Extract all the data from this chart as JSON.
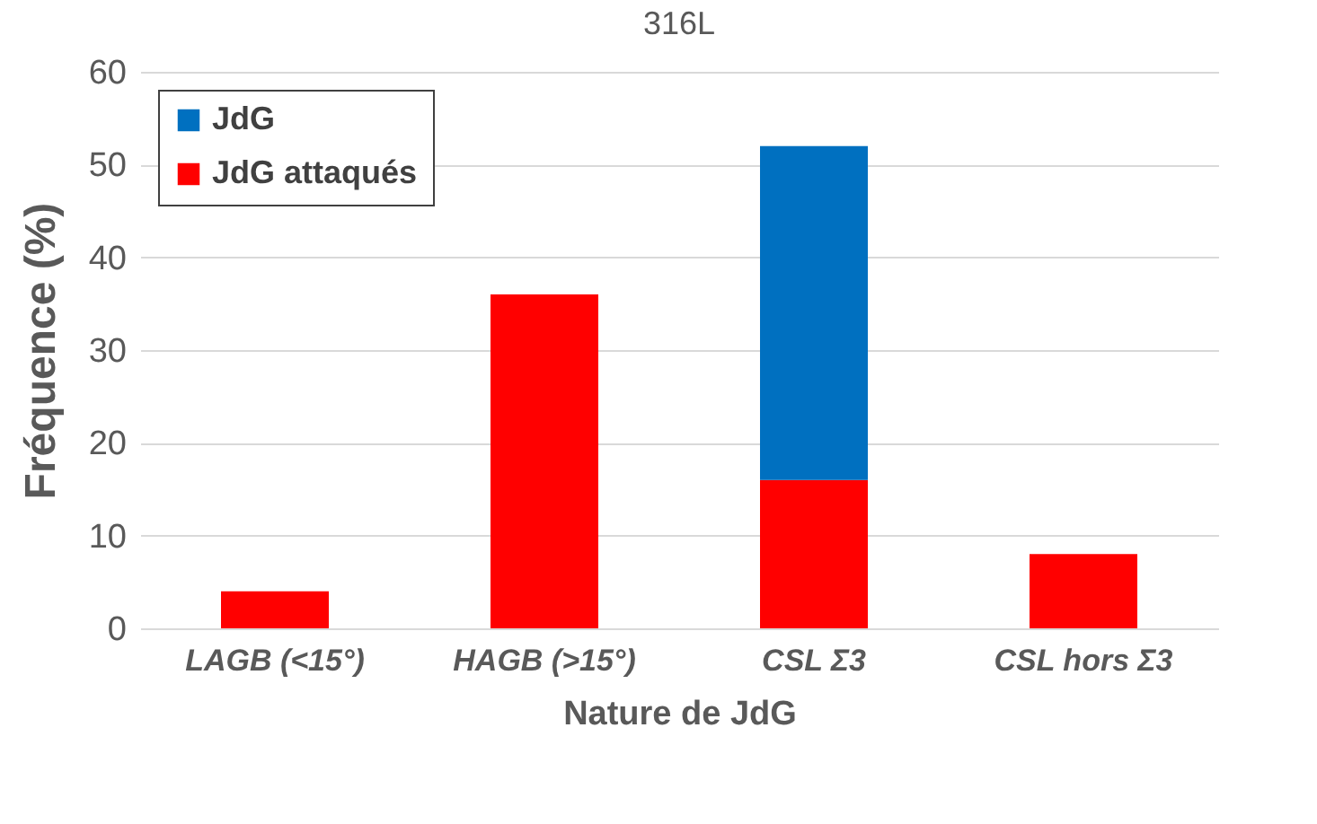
{
  "chart_data": {
    "type": "bar",
    "title": "316L",
    "xlabel": "Nature de JdG",
    "ylabel": "Fréquence (%)",
    "categories": [
      "LAGB (<15°)",
      "HAGB (>15°)",
      "CSL Σ3",
      "CSL hors Σ3"
    ],
    "series": [
      {
        "name": "JdG attaqués",
        "color": "#ff0000",
        "values": [
          4,
          36,
          16,
          8
        ]
      },
      {
        "name": "JdG",
        "color": "#0070c0",
        "values": [
          null,
          null,
          36,
          null
        ]
      }
    ],
    "stacked": true,
    "ylim": [
      0,
      60
    ],
    "yticks": [
      0,
      10,
      20,
      30,
      40,
      50,
      60
    ],
    "grid": "y",
    "legend": "top left"
  }
}
